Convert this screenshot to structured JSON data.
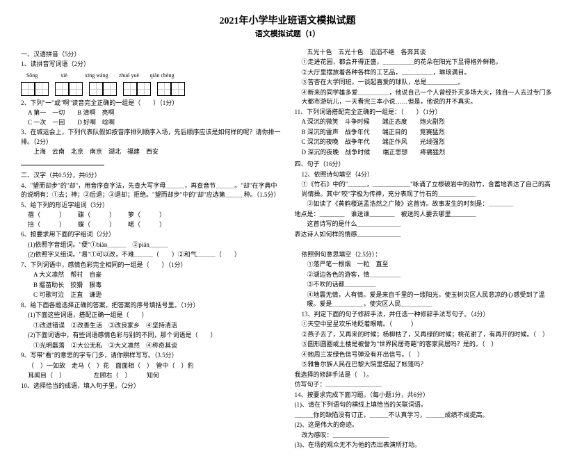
{
  "title": {
    "main": "2021年小学毕业班语文模拟试题",
    "sub": "语文模拟试题（1）"
  },
  "col1": {
    "s1_head": "一、汉语拼音（5分）",
    "q1": "1、读拼音写词语（2分）",
    "pinyin": [
      "Sōng",
      "xiè",
      "xīng wàng",
      "zhuó yuè",
      "qián chéng"
    ],
    "q2": "2、下列\"一\"或\"啊\"读音完全正确的一组是（　　）（1分）",
    "q2a": "A 第一　一切",
    "q2b": "B 清啊　亮啊",
    "q2c": "C 一次　一回",
    "q2d": "D 好啊　唸啊",
    "q3": "3、在城运会上，下列代表队假如按音序排列顺序入场，先后顺序应该是如何样的呢？请你排一排。（2分）",
    "q3_list": "上海　云南　北京　南京　湖北　福建　西安",
    "s2_head": "二、汉字（共0.5分，共6分）",
    "q4": "4、\"望而却步\"的\"却\"，用音序查字法，先查大写字母＿＿＿，再查音节＿＿＿。\"却\"在字典中的说明有：①去；神；②后退；③退却；拒绝。\"望而却步\"中的\"却\"应选第＿＿＿种。（1.5分）",
    "q5": "5、给下列的形近字组词（3分）",
    "q5a1": "蓓（　　　）",
    "q5a2": "碟（　　　）",
    "q5a3": "箩（　　　）",
    "q5b1": "掊（　　　）",
    "q5b2": "蝶（　　　）",
    "q5b3": "喏（　　　）",
    "q6": "6、按要求用下面的字组词（2分）",
    "q6_1": "(1)依照字音组词。\"便\"①biàn＿＿＿　②pián＿＿＿",
    "q6_2": "(2)依照字义组词。\"易\"①可以改，不难＿＿＿（　　）②和气＿＿＿（　　）",
    "q7": "7、下列词语中，感情色彩完全相同的一组是（　　）（1分）",
    "q7a": "A 大义凛然　帮衬　自豪",
    "q7b": "B 揠苗助长　狡猾　狠毒",
    "q7c": "C 可歌可泣　正直　谦逊",
    "q8": "8、给下面各题选择正确的答案，把答案的序号填括号里。（1分）",
    "q8_1": "(1)下面这些词语，搭配正确一组是（　　）",
    "q8_1o": "①改进错误　②改善生活　③改良家乡　④坚持清洁",
    "q8_2": "(2)下面词语中，有些词语感情色彩与别的不同，那个词语是（　　）",
    "q8_2o": "①光明磊落　②大公无私　③大义凛然　④称奇其谈",
    "q9": "9、写带\"看\"的意思的字专门多，请你照样写写。（3.5分）",
    "q9_ex": "（　）一如故　走马（　）花　面面相（　）　管中（　）豹",
    "q9_ex2": "耳闻目（　）　　　　　左顾右（　）　　　知何",
    "q10": "10、选择恰当的成语，填入句子里。（2分）"
  },
  "col2": {
    "l1": "五光十色　五光十色　滔滔不绝　各奔其谈",
    "l2": "①走进花园，都会开得正盛，＿＿＿＿＿的花朵在阳光下显得格外鲜艳。",
    "l3": "②大厅里摆放着各种各样的工艺品，＿＿＿＿＿，琳琅满目。",
    "l4": "③苦杏在大学同班，一谈起喜爱的球队，总是＿＿＿＿＿。",
    "l5": "④新来的同学雄多爱＿＿＿＿＿，他说自己一个人曾经扑灭多场大火，独自一人去过专门多大都市游玩儿，一天看完三本小说……但是，他说的并不真实。",
    "q11": "11、下列词语搭配完全正确的一组是：（　　）（1分）",
    "q11a": "A 深沉的微笑　斗争时候　　端正态度　　炮火剧烈",
    "q11b": "B 深沉的雷声　战争年代　　端正目的　　竞赛猛烈",
    "q11c": "C 深沉的夜晚　战争年代　　端正作风　　光线强烈",
    "q11d": "D 深沉的夜晚　战争时候　　端正思想　　疼痛猛烈",
    "s4_head": "四、句子（16分）",
    "q12": "12、依照诗句填空（4分）",
    "q12_1": "①《竹石》中的\"＿＿＿，＿＿＿＿＿＿\"咏诵了立根破岩中的劲竹，含蓄地表达了自己的高尚情操。其中\"咬\"字极为传神，充分表现了竹石的＿＿＿＿＿＿",
    "q12_2": "②如读了《黄鹤楼送孟浩然之广陵》这首诗。故事发生的时刻是：＿＿＿＿",
    "q12_2b": "地点是：＿＿＿＿　谁送谁＿＿＿＿　被送的人要去哪里＿＿＿＿",
    "q12_2c": "这首诗写的是什么＿＿＿＿＿＿＿",
    "q12_3": "表达诗人如何样的情感＿＿＿＿＿＿＿",
    "s_blank": "　",
    "q13_head": "依照例句意思填空（2.5分）：",
    "q13_1": "①落严笔一根烟　一粒　直至",
    "q13_2": "②湖边各色的游客，情＿＿＿＿＿",
    "q13_3": "③不吹的话都＿＿＿＿＿",
    "q13_4": "④地震无情，人有情。爱是来自千里的一缕阳光，使玉树灾区人民悲凉的心感受到了温暖。爱是＿＿＿＿＿，使灾区人民＿＿＿＿＿",
    "q13_5": "13、判定下面的句子修辞手法，并任选一种修辞手法写句子。（4分）",
    "q13_5_1": "①天空中星星欢乐地眨着眼睛。（　　　）",
    "q13_5_2": "②燕子去了，又再来的时候；杨柳枯了，又再绿的时候；桃花谢了，有再开的时候。（　）",
    "q13_5_3": "③圆形圆圈或土楼是被誉为\"世界民居奇葩\"的客家民居吗？是的。（　）",
    "q13_5_4": "④她周三发绿色信号弹没有开出信号。（　）",
    "q13_5_5": "⑤雅鲁尔族人民在巴黎大院里搭起了帐篷吗？",
    "q13_pick": "我选择的修辞手法是（　）。",
    "q13_write": "仿写句子：＿＿＿＿＿＿＿＿＿",
    "q14": "14、按要求完成下面习题。（每小题1分，共6分）",
    "q14_1": "(1)、请在下列语句的横线上填恰当的关联词语。",
    "q14_1a": "＿＿＿你的缺陷没有订正，＿＿＿不认真学习，＿＿＿成绩不成提高。",
    "q14_2": "(2)、这是伟大的奇迹。",
    "q14_2a": "改为感叹：＿＿＿＿＿＿＿＿＿",
    "q14_3": "(3)、在场的观众无不为他的杰出表演所打动。"
  }
}
